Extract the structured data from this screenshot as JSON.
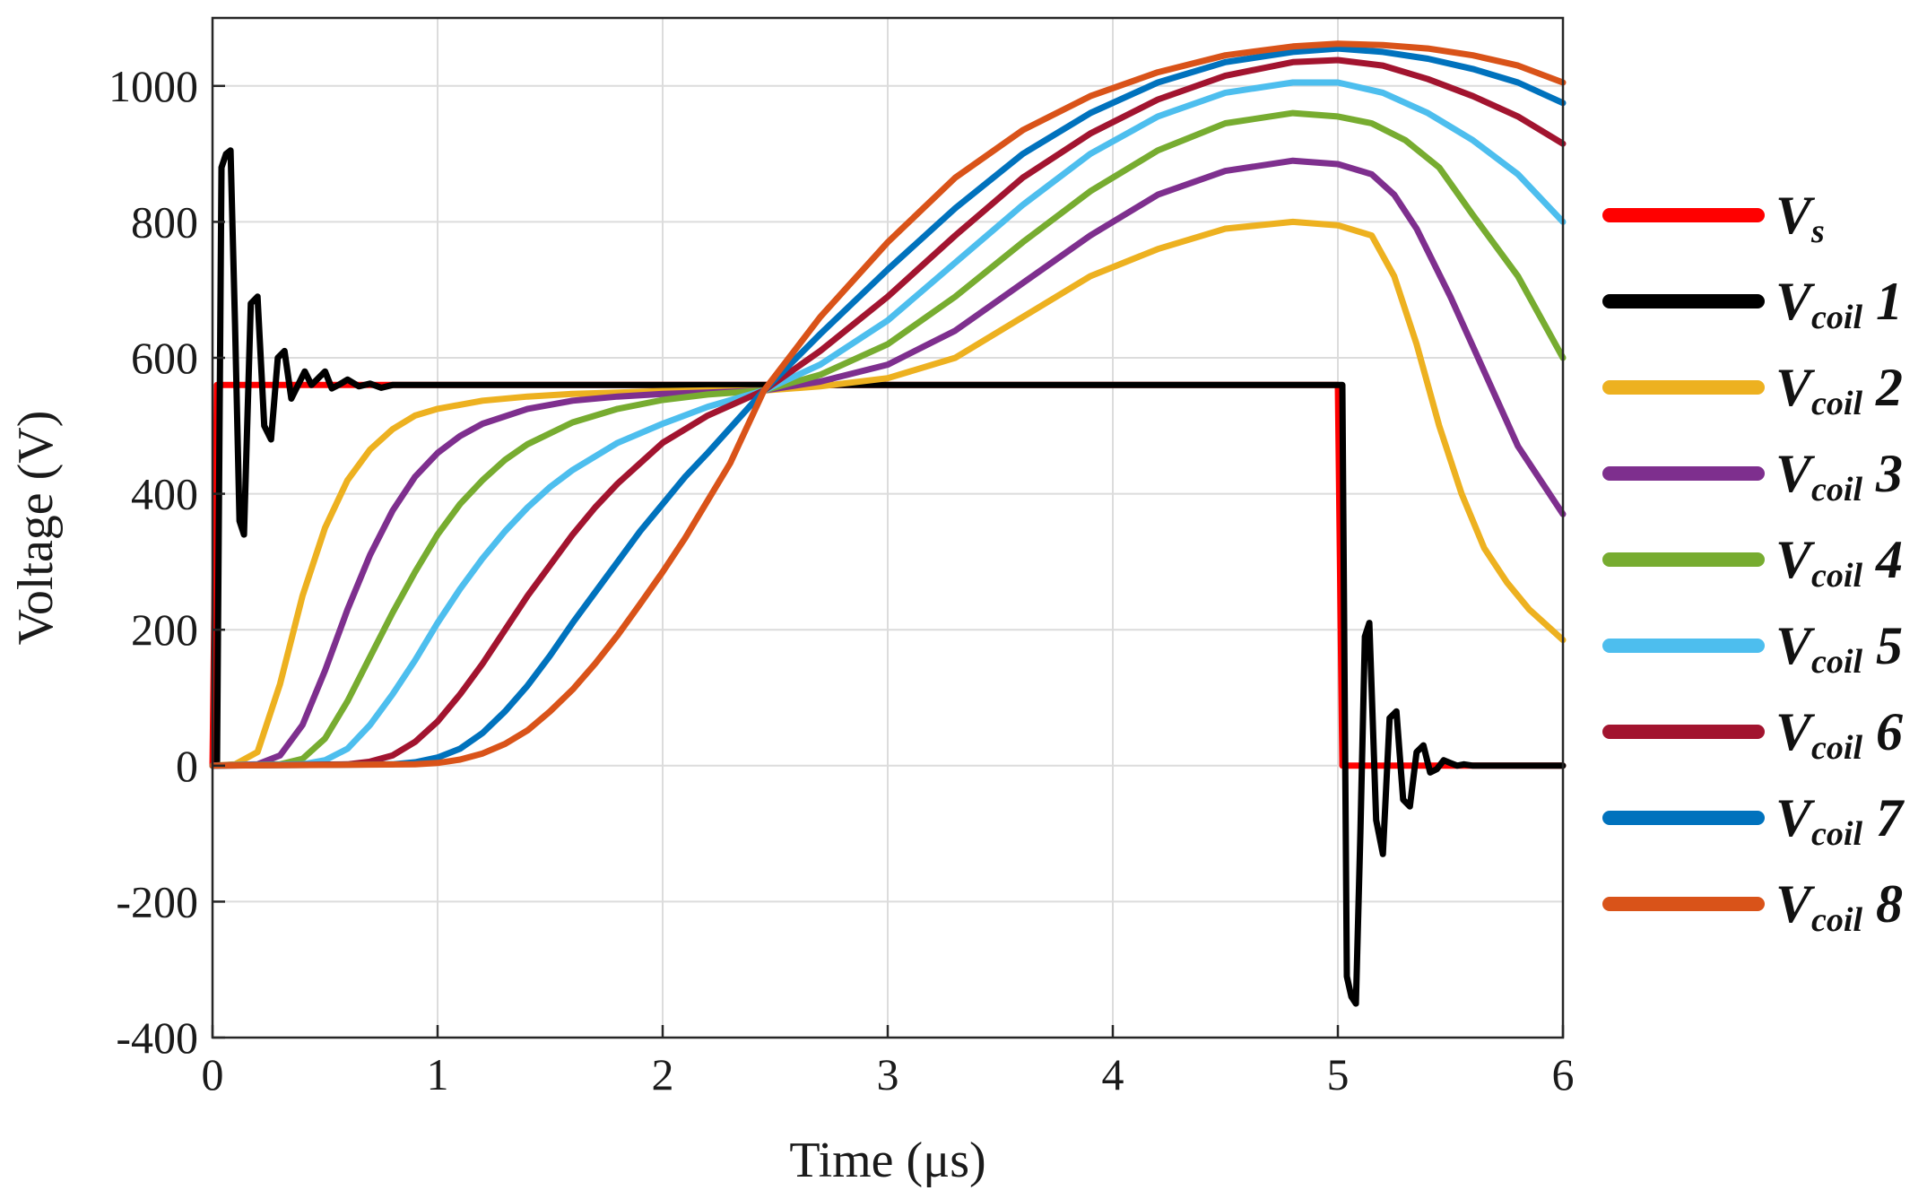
{
  "chart_data": {
    "type": "line",
    "xlabel": "Time (μs)",
    "ylabel": "Voltage (V)",
    "xlim": [
      0,
      6
    ],
    "ylim": [
      -400,
      1100
    ],
    "grid": true,
    "legend_position": "right",
    "xticks": [
      0,
      1,
      2,
      3,
      4,
      5,
      6
    ],
    "yticks": [
      -400,
      -200,
      0,
      200,
      400,
      600,
      800,
      1000
    ],
    "xtick_labels": [
      "0",
      "1",
      "2",
      "3",
      "4",
      "5",
      "6"
    ],
    "ytick_labels": [
      "-400",
      "-200",
      "0",
      "200",
      "400",
      "600",
      "800",
      "1000"
    ],
    "series": [
      {
        "name": "Vs",
        "label_main": "V",
        "label_sub": "s",
        "label_num": "",
        "color": "#ff0000",
        "x": [
          0,
          0.02,
          5.0,
          5.02,
          6.0
        ],
        "y": [
          0,
          560,
          560,
          0,
          0
        ]
      },
      {
        "name": "Vcoil 1",
        "label_main": "V",
        "label_sub": "coil",
        "label_num": "1",
        "color": "#000000",
        "x": [
          0,
          0.02,
          0.04,
          0.06,
          0.08,
          0.1,
          0.12,
          0.14,
          0.17,
          0.2,
          0.23,
          0.26,
          0.29,
          0.32,
          0.35,
          0.38,
          0.41,
          0.44,
          0.47,
          0.5,
          0.53,
          0.56,
          0.6,
          0.65,
          0.7,
          0.75,
          0.8,
          0.9,
          1.0,
          1.2,
          5.02,
          5.04,
          5.06,
          5.08,
          5.1,
          5.12,
          5.14,
          5.17,
          5.2,
          5.23,
          5.26,
          5.29,
          5.32,
          5.35,
          5.38,
          5.41,
          5.44,
          5.47,
          5.5,
          5.53,
          5.56,
          5.6,
          5.65,
          5.7,
          5.75,
          5.8,
          5.9,
          6.0
        ],
        "y": [
          0,
          0,
          880,
          900,
          905,
          650,
          360,
          340,
          680,
          690,
          500,
          480,
          600,
          610,
          540,
          560,
          580,
          560,
          570,
          580,
          555,
          560,
          568,
          558,
          562,
          556,
          560,
          560,
          560,
          560,
          560,
          -310,
          -340,
          -350,
          -100,
          190,
          210,
          -80,
          -130,
          70,
          80,
          -50,
          -60,
          20,
          30,
          -10,
          -5,
          8,
          4,
          0,
          2,
          0,
          0,
          0,
          0,
          0,
          0,
          0
        ]
      },
      {
        "name": "Vcoil 2",
        "label_main": "V",
        "label_sub": "coil",
        "label_num": "2",
        "color": "#edb120",
        "x": [
          0,
          0.1,
          0.2,
          0.3,
          0.4,
          0.5,
          0.6,
          0.7,
          0.8,
          0.9,
          1.0,
          1.2,
          1.4,
          1.6,
          1.8,
          2.0,
          2.2,
          2.45,
          2.7,
          3.0,
          3.3,
          3.6,
          3.9,
          4.2,
          4.5,
          4.8,
          5.0,
          5.15,
          5.25,
          5.35,
          5.45,
          5.55,
          5.65,
          5.75,
          5.85,
          6.0
        ],
        "y": [
          0,
          2,
          20,
          120,
          250,
          350,
          420,
          465,
          495,
          515,
          525,
          537,
          543,
          547,
          549,
          551,
          552,
          552,
          558,
          570,
          600,
          660,
          720,
          760,
          790,
          800,
          795,
          780,
          720,
          620,
          500,
          400,
          320,
          270,
          230,
          185
        ]
      },
      {
        "name": "Vcoil 3",
        "label_main": "V",
        "label_sub": "coil",
        "label_num": "3",
        "color": "#7e2f8e",
        "x": [
          0,
          0.2,
          0.3,
          0.4,
          0.5,
          0.6,
          0.7,
          0.8,
          0.9,
          1.0,
          1.1,
          1.2,
          1.4,
          1.6,
          1.8,
          2.0,
          2.2,
          2.45,
          2.7,
          3.0,
          3.3,
          3.6,
          3.9,
          4.2,
          4.5,
          4.8,
          5.0,
          5.15,
          5.25,
          5.35,
          5.5,
          5.65,
          5.8,
          6.0
        ],
        "y": [
          0,
          2,
          15,
          60,
          140,
          230,
          310,
          375,
          425,
          460,
          485,
          503,
          525,
          537,
          543,
          547,
          549,
          552,
          565,
          590,
          640,
          710,
          780,
          840,
          875,
          890,
          885,
          870,
          840,
          790,
          690,
          580,
          470,
          370
        ]
      },
      {
        "name": "Vcoil 4",
        "label_main": "V",
        "label_sub": "coil",
        "label_num": "4",
        "color": "#77ac30",
        "x": [
          0,
          0.3,
          0.4,
          0.5,
          0.6,
          0.7,
          0.8,
          0.9,
          1.0,
          1.1,
          1.2,
          1.3,
          1.4,
          1.6,
          1.8,
          2.0,
          2.2,
          2.45,
          2.7,
          3.0,
          3.3,
          3.6,
          3.9,
          4.2,
          4.5,
          4.8,
          5.0,
          5.15,
          5.3,
          5.45,
          5.6,
          5.8,
          6.0
        ],
        "y": [
          0,
          2,
          10,
          40,
          95,
          160,
          225,
          285,
          340,
          385,
          420,
          450,
          473,
          505,
          525,
          538,
          546,
          552,
          575,
          620,
          690,
          770,
          845,
          905,
          945,
          960,
          955,
          945,
          920,
          880,
          810,
          720,
          600
        ]
      },
      {
        "name": "Vcoil 5",
        "label_main": "V",
        "label_sub": "coil",
        "label_num": "5",
        "color": "#4dbeee",
        "x": [
          0,
          0.4,
          0.5,
          0.6,
          0.7,
          0.8,
          0.9,
          1.0,
          1.1,
          1.2,
          1.3,
          1.4,
          1.5,
          1.6,
          1.8,
          2.0,
          2.2,
          2.45,
          2.7,
          3.0,
          3.3,
          3.6,
          3.9,
          4.2,
          4.5,
          4.8,
          5.0,
          5.2,
          5.4,
          5.6,
          5.8,
          6.0
        ],
        "y": [
          0,
          2,
          8,
          25,
          60,
          105,
          155,
          210,
          260,
          305,
          345,
          380,
          410,
          435,
          475,
          503,
          528,
          552,
          590,
          655,
          740,
          825,
          900,
          955,
          990,
          1005,
          1005,
          990,
          960,
          920,
          870,
          800
        ]
      },
      {
        "name": "Vcoil 6",
        "label_main": "V",
        "label_sub": "coil",
        "label_num": "6",
        "color": "#a2142f",
        "x": [
          0,
          0.6,
          0.7,
          0.8,
          0.9,
          1.0,
          1.1,
          1.2,
          1.3,
          1.4,
          1.5,
          1.6,
          1.7,
          1.8,
          1.9,
          2.0,
          2.2,
          2.45,
          2.7,
          3.0,
          3.3,
          3.6,
          3.9,
          4.2,
          4.5,
          4.8,
          5.0,
          5.2,
          5.4,
          5.6,
          5.8,
          6.0
        ],
        "y": [
          0,
          2,
          6,
          15,
          35,
          65,
          105,
          150,
          200,
          250,
          295,
          340,
          380,
          415,
          445,
          475,
          515,
          552,
          610,
          690,
          780,
          865,
          930,
          980,
          1015,
          1035,
          1038,
          1030,
          1010,
          985,
          955,
          915
        ]
      },
      {
        "name": "Vcoil 7",
        "label_main": "V",
        "label_sub": "coil",
        "label_num": "7",
        "color": "#0072bd",
        "x": [
          0,
          0.8,
          0.9,
          1.0,
          1.1,
          1.2,
          1.3,
          1.4,
          1.5,
          1.6,
          1.7,
          1.8,
          1.9,
          2.0,
          2.1,
          2.2,
          2.45,
          2.7,
          3.0,
          3.3,
          3.6,
          3.9,
          4.2,
          4.5,
          4.8,
          5.0,
          5.2,
          5.4,
          5.6,
          5.8,
          6.0
        ],
        "y": [
          0,
          2,
          5,
          12,
          25,
          48,
          80,
          118,
          162,
          210,
          255,
          300,
          345,
          385,
          425,
          460,
          552,
          635,
          730,
          820,
          900,
          960,
          1005,
          1035,
          1050,
          1055,
          1050,
          1040,
          1025,
          1005,
          975
        ]
      },
      {
        "name": "Vcoil 8",
        "label_main": "V",
        "label_sub": "coil",
        "label_num": "8",
        "color": "#d95319",
        "x": [
          0,
          0.9,
          1.0,
          1.1,
          1.2,
          1.3,
          1.4,
          1.5,
          1.6,
          1.7,
          1.8,
          1.9,
          2.0,
          2.1,
          2.2,
          2.3,
          2.45,
          2.7,
          3.0,
          3.3,
          3.6,
          3.9,
          4.2,
          4.5,
          4.8,
          5.0,
          5.2,
          5.4,
          5.6,
          5.8,
          6.0
        ],
        "y": [
          0,
          2,
          4,
          9,
          18,
          32,
          52,
          80,
          112,
          150,
          192,
          238,
          285,
          335,
          390,
          445,
          552,
          660,
          770,
          865,
          935,
          985,
          1020,
          1045,
          1058,
          1062,
          1060,
          1055,
          1045,
          1030,
          1005
        ]
      }
    ]
  }
}
